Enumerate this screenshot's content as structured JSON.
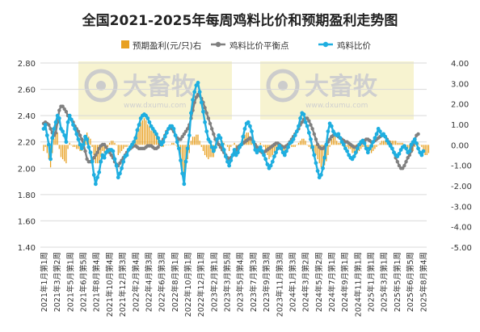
{
  "chart_data": {
    "type": "bar+line",
    "title": "全国2021-2025年每周鸡料比价和预期盈利走势图",
    "legend": {
      "placement": "top",
      "items": [
        {
          "label": "预期盈利(元/只)右",
          "kind": "bar",
          "color": "#E8A020"
        },
        {
          "label": "鸡料比价平衡点",
          "kind": "line-marker",
          "color": "#808080"
        },
        {
          "label": "鸡料比价",
          "kind": "line-marker",
          "color": "#1EAEE0"
        }
      ]
    },
    "watermark": {
      "text": "大畜牧",
      "subtext": "www.dxumu.com"
    },
    "left_axis": {
      "min": 1.4,
      "max": 2.8,
      "ticks": [
        "1.40",
        "1.60",
        "1.80",
        "2.00",
        "2.20",
        "2.40",
        "2.60",
        "2.80"
      ]
    },
    "right_axis": {
      "min": -5.0,
      "max": 4.0,
      "ticks": [
        "4.00",
        "3.00",
        "2.00",
        "1.00",
        "0.00",
        "-1.00",
        "-2.00",
        "-3.00",
        "-4.00",
        "-5.00"
      ]
    },
    "x_tick_labels": [
      "2021年1月第1周",
      "2021年3月第2周",
      "2021年5月第1周",
      "2021年6月第5周",
      "2021年8月第4周",
      "2021年10月第4周",
      "2021年12月第3周",
      "2022年2月第4周",
      "2022年4月第3周",
      "2022年6月第3周",
      "2022年8月第1周",
      "2022年10月第1周",
      "2022年12月第1周",
      "2023年2月第1周",
      "2023年3月第5周",
      "2023年5月第4周",
      "2023年7月第3周",
      "2023年9月第3周",
      "2023年11月第3周",
      "2024年1月第3周",
      "2024年3月第2周",
      "2024年5月第2周",
      "2024年7月第1周",
      "2024年9月第1周",
      "2024年11月第1周",
      "2025年1月第1周",
      "2025年3月第1周",
      "2025年5月第1周",
      "2025年6月第5周",
      "2025年8月第4周"
    ],
    "series": [
      {
        "name": "鸡料比价",
        "axis": "left",
        "color": "#1EAEE0",
        "values": [
          2.3,
          2.33,
          2.25,
          2.18,
          2.07,
          2.23,
          2.3,
          2.35,
          2.4,
          2.38,
          2.3,
          2.28,
          2.25,
          2.2,
          2.35,
          2.4,
          2.37,
          2.33,
          2.3,
          2.26,
          2.22,
          2.18,
          2.15,
          2.18,
          2.24,
          2.22,
          2.16,
          2.12,
          2.05,
          1.95,
          1.88,
          1.93,
          1.97,
          2.05,
          2.1,
          2.08,
          2.12,
          2.13,
          2.14,
          2.14,
          2.13,
          2.07,
          2.02,
          1.93,
          1.96,
          2.0,
          2.05,
          2.09,
          2.1,
          2.14,
          2.16,
          2.18,
          2.2,
          2.23,
          2.29,
          2.33,
          2.38,
          2.4,
          2.41,
          2.4,
          2.38,
          2.35,
          2.32,
          2.3,
          2.28,
          2.26,
          2.23,
          2.2,
          2.18,
          2.2,
          2.24,
          2.27,
          2.3,
          2.32,
          2.32,
          2.3,
          2.25,
          2.2,
          2.15,
          2.06,
          1.96,
          1.88,
          2.05,
          2.15,
          2.25,
          2.42,
          2.52,
          2.58,
          2.63,
          2.65,
          2.58,
          2.5,
          2.43,
          2.35,
          2.28,
          2.22,
          2.2,
          2.16,
          2.13,
          2.16,
          2.22,
          2.25,
          2.23,
          2.18,
          2.14,
          2.09,
          2.05,
          2.02,
          2.06,
          2.1,
          2.14,
          2.1,
          2.12,
          2.16,
          2.18,
          2.24,
          2.3,
          2.34,
          2.35,
          2.32,
          2.28,
          2.2,
          2.14,
          2.12,
          2.14,
          2.16,
          2.13,
          2.1,
          2.07,
          2.03,
          2.0,
          2.02,
          2.05,
          2.09,
          2.12,
          2.15,
          2.17,
          2.15,
          2.12,
          2.1,
          2.13,
          2.16,
          2.19,
          2.2,
          2.22,
          2.25,
          2.28,
          2.32,
          2.38,
          2.42,
          2.41,
          2.35,
          2.32,
          2.27,
          2.22,
          2.16,
          2.1,
          2.04,
          1.98,
          1.93,
          1.95,
          2.0,
          2.08,
          2.18,
          2.28,
          2.34,
          2.32,
          2.28,
          2.26,
          2.25,
          2.26,
          2.23,
          2.2,
          2.18,
          2.15,
          2.13,
          2.1,
          2.08,
          2.07,
          2.09,
          2.12,
          2.15,
          2.18,
          2.2,
          2.21,
          2.19,
          2.15,
          2.12,
          2.15,
          2.17,
          2.2,
          2.23,
          2.26,
          2.3,
          2.28,
          2.25,
          2.26,
          2.24,
          2.21,
          2.19,
          2.17,
          2.15,
          2.12,
          2.1,
          2.09,
          2.11,
          2.14,
          2.16,
          2.17,
          2.15,
          2.12,
          2.13,
          2.18,
          2.2,
          2.22,
          2.19,
          2.15,
          2.12,
          2.1,
          2.13
        ]
      },
      {
        "name": "鸡料比价平衡点",
        "axis": "left",
        "color": "#808080",
        "values": [
          2.34,
          2.35,
          2.34,
          2.33,
          2.3,
          2.27,
          2.25,
          2.27,
          2.35,
          2.44,
          2.47,
          2.47,
          2.45,
          2.43,
          2.4,
          2.38,
          2.37,
          2.35,
          2.32,
          2.3,
          2.28,
          2.25,
          2.22,
          2.18,
          2.13,
          2.07,
          2.05,
          2.05,
          2.06,
          2.08,
          2.1,
          2.12,
          2.15,
          2.17,
          2.18,
          2.18,
          2.16,
          2.14,
          2.12,
          2.1,
          2.08,
          2.05,
          2.03,
          2.02,
          2.04,
          2.06,
          2.08,
          2.1,
          2.12,
          2.14,
          2.15,
          2.16,
          2.17,
          2.17,
          2.16,
          2.15,
          2.15,
          2.15,
          2.15,
          2.16,
          2.17,
          2.17,
          2.17,
          2.16,
          2.15,
          2.15,
          2.16,
          2.18,
          2.2,
          2.22,
          2.25,
          2.28,
          2.3,
          2.31,
          2.3,
          2.28,
          2.25,
          2.23,
          2.22,
          2.22,
          2.24,
          2.26,
          2.28,
          2.3,
          2.33,
          2.38,
          2.44,
          2.5,
          2.54,
          2.56,
          2.55,
          2.53,
          2.5,
          2.46,
          2.42,
          2.38,
          2.34,
          2.3,
          2.26,
          2.22,
          2.2,
          2.18,
          2.16,
          2.14,
          2.12,
          2.1,
          2.08,
          2.07,
          2.08,
          2.1,
          2.12,
          2.14,
          2.16,
          2.17,
          2.18,
          2.19,
          2.2,
          2.21,
          2.22,
          2.23,
          2.22,
          2.2,
          2.18,
          2.16,
          2.14,
          2.13,
          2.12,
          2.12,
          2.13,
          2.14,
          2.15,
          2.16,
          2.17,
          2.18,
          2.19,
          2.19,
          2.18,
          2.17,
          2.16,
          2.16,
          2.17,
          2.18,
          2.2,
          2.22,
          2.24,
          2.26,
          2.28,
          2.3,
          2.33,
          2.35,
          2.37,
          2.38,
          2.38,
          2.36,
          2.33,
          2.3,
          2.26,
          2.22,
          2.18,
          2.16,
          2.15,
          2.15,
          2.16,
          2.18,
          2.2,
          2.22,
          2.24,
          2.25,
          2.26,
          2.25,
          2.24,
          2.23,
          2.22,
          2.21,
          2.2,
          2.2,
          2.19,
          2.18,
          2.17,
          2.16,
          2.16,
          2.17,
          2.18,
          2.19,
          2.2,
          2.21,
          2.22,
          2.22,
          2.21,
          2.2,
          2.2,
          2.21,
          2.22,
          2.23,
          2.24,
          2.25,
          2.25,
          2.24,
          2.22,
          2.2,
          2.18,
          2.15,
          2.12,
          2.08,
          2.05,
          2.02,
          2.0,
          2.0,
          2.02,
          2.05,
          2.08,
          2.1,
          2.13,
          2.18,
          2.22,
          2.25,
          2.26
        ]
      },
      {
        "name": "预期盈利(元/只)右",
        "axis": "right",
        "color": "#E8A020",
        "values": [
          -0.3,
          -0.1,
          -0.4,
          -0.7,
          -1.1,
          -0.4,
          0.3,
          1.1,
          0.6,
          -0.2,
          -0.6,
          -0.7,
          -0.8,
          -0.9,
          -0.2,
          0.1,
          0.0,
          -0.1,
          -0.1,
          -0.2,
          -0.2,
          -0.3,
          -0.3,
          0.0,
          0.4,
          0.6,
          0.4,
          0.3,
          -0.1,
          -0.5,
          -0.9,
          -0.9,
          -0.9,
          -0.6,
          -0.3,
          -0.4,
          -0.2,
          -0.1,
          0.1,
          0.2,
          0.2,
          0.1,
          0.0,
          -0.5,
          -0.4,
          -0.3,
          -0.2,
          -0.1,
          -0.1,
          0.0,
          0.0,
          0.1,
          0.2,
          0.3,
          0.6,
          0.8,
          1.1,
          1.2,
          1.3,
          1.2,
          1.0,
          0.9,
          0.7,
          0.7,
          0.6,
          0.5,
          0.3,
          0.1,
          -0.1,
          -0.1,
          0.0,
          0.0,
          0.0,
          0.0,
          0.1,
          0.1,
          0.0,
          -0.1,
          -0.3,
          -0.7,
          -1.3,
          -1.8,
          -1.1,
          -0.7,
          -0.4,
          0.2,
          0.4,
          0.4,
          0.5,
          0.5,
          0.2,
          -0.1,
          -0.3,
          -0.5,
          -0.6,
          -0.7,
          -0.6,
          -0.6,
          -0.6,
          -0.3,
          0.1,
          0.0,
          0.0,
          0.2,
          0.1,
          0.0,
          -0.1,
          -0.3,
          -0.1,
          0.0,
          0.1,
          -0.2,
          -0.2,
          -0.1,
          0.0,
          0.2,
          0.5,
          0.6,
          0.6,
          0.4,
          0.3,
          0.0,
          -0.2,
          -0.2,
          0.0,
          0.1,
          0.0,
          -0.1,
          -0.3,
          -0.5,
          -0.7,
          -0.6,
          -0.5,
          -0.4,
          -0.3,
          -0.2,
          -0.1,
          -0.1,
          -0.3,
          -0.3,
          -0.2,
          -0.1,
          0.0,
          -0.1,
          -0.1,
          -0.1,
          0.0,
          0.1,
          0.2,
          0.3,
          0.3,
          0.2,
          0.0,
          -0.1,
          -0.2,
          -0.3,
          -0.4,
          -0.5,
          -0.7,
          -0.9,
          -1.1,
          -1.2,
          -1.0,
          -0.8,
          -0.5,
          -0.1,
          0.3,
          0.4,
          0.4,
          0.2,
          0.1,
          0.1,
          0.0,
          -0.1,
          -0.1,
          -0.1,
          -0.2,
          -0.2,
          -0.4,
          -0.4,
          -0.5,
          -0.4,
          -0.3,
          -0.2,
          -0.1,
          -0.1,
          -0.1,
          -0.2,
          -0.3,
          -0.4,
          -0.3,
          -0.2,
          -0.1,
          0.0,
          0.1,
          0.2,
          0.2,
          0.2,
          0.2,
          0.2,
          0.2,
          0.2,
          0.2,
          0.2,
          0.1,
          0.1,
          0.1,
          0.1,
          0.0,
          -0.1,
          -0.2,
          -0.3,
          -0.4,
          -0.3,
          -0.1,
          0.1,
          0.1,
          0.0,
          -0.1,
          -0.3,
          -0.5,
          -0.5,
          -0.4
        ]
      }
    ],
    "grid": true
  }
}
